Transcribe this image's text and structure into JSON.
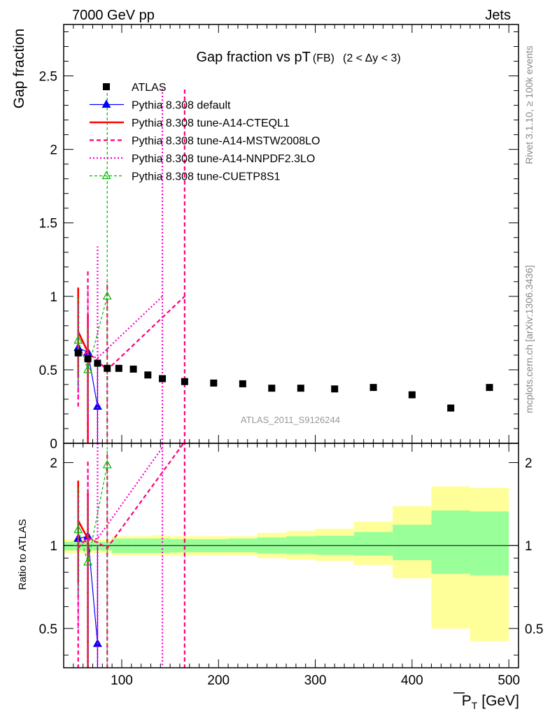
{
  "header": {
    "energy": "7000 GeV pp",
    "process": "Jets",
    "watermark": "ATLAS_2011_S9126244"
  },
  "side_labels": {
    "rivet": "Rivet 3.1.10, ≥ 100k events",
    "mcplots": "mcplots.cern.ch [arXiv:1306.3436]"
  },
  "colors": {
    "atlas": "#000000",
    "default": "#0000ff",
    "cteql1": "#ff0000",
    "mstw": "#ff0080",
    "nnpdf": "#ff00cc",
    "cuetp": "#00bb00",
    "band_inner": "#99ff99",
    "band_outer": "#ffff99"
  },
  "chart_data": [
    {
      "type": "scatter",
      "title": "Gap fraction vs pT",
      "title_sub": "(FB)",
      "title_cond": "(2 < Δy < 3)",
      "ylabel": "Gap fraction",
      "xlim": [
        40,
        510
      ],
      "ylim": [
        0,
        2.85
      ],
      "yticks": [
        0,
        0.5,
        1,
        1.5,
        2,
        2.5
      ],
      "ytick_labels": [
        "0",
        "0.5",
        "1",
        "1.5",
        "2",
        "2.5"
      ],
      "legend_position": "top-left",
      "series": [
        {
          "key": "atlas",
          "name": "ATLAS",
          "style": "points",
          "x": [
            55,
            65,
            75,
            85,
            97,
            112,
            127,
            142,
            165,
            195,
            225,
            255,
            285,
            320,
            360,
            400,
            440,
            480
          ],
          "y": [
            0.615,
            0.575,
            0.545,
            0.51,
            0.51,
            0.505,
            0.465,
            0.44,
            0.42,
            0.41,
            0.405,
            0.375,
            0.375,
            0.37,
            0.38,
            0.33,
            0.24,
            0.38
          ]
        },
        {
          "key": "default",
          "name": "Pythia 8.308 default",
          "style": "solid-triangle",
          "x": [
            55,
            65,
            75
          ],
          "y": [
            0.65,
            0.62,
            0.25
          ],
          "err": [
            [
              0.35,
              0.95
            ],
            [
              0.4,
              0.85
            ],
            [
              0.0,
              0.55
            ]
          ]
        },
        {
          "key": "cteql1",
          "name": "Pythia 8.308 tune-A14-CTEQL1",
          "style": "solid-thick",
          "x": [
            55,
            65
          ],
          "y": [
            0.76,
            0.62
          ],
          "err": [
            [
              0.45,
              1.06
            ],
            [
              0.0,
              0.88
            ]
          ]
        },
        {
          "key": "mstw",
          "name": "Pythia 8.308 tune-A14-MSTW2008LO",
          "style": "dashed",
          "x": [
            55,
            65,
            85,
            165
          ],
          "y": [
            0.6,
            0.62,
            0.5,
            1.0
          ],
          "err": [
            [
              0.25,
              0.95
            ],
            [
              0.0,
              1.17
            ],
            [
              0.0,
              1.1
            ],
            [
              0.0,
              2.42
            ]
          ]
        },
        {
          "key": "nnpdf",
          "name": "Pythia 8.308 tune-A14-NNPDF2.3LO",
          "style": "dotted",
          "x": [
            55,
            65,
            75,
            142
          ],
          "y": [
            0.63,
            0.6,
            0.58,
            1.0
          ],
          "err": [
            [
              0.3,
              0.97
            ],
            [
              0.15,
              1.05
            ],
            [
              0.0,
              1.34
            ],
            [
              0.0,
              2.42
            ]
          ]
        },
        {
          "key": "cuetp",
          "name": "Pythia 8.308 tune-CUETP8S1",
          "style": "dashed-open-triangle",
          "x": [
            55,
            65,
            85
          ],
          "y": [
            0.7,
            0.5,
            1.0
          ],
          "err": [
            [
              0.4,
              1.0
            ],
            [
              0.2,
              0.8
            ],
            [
              0.0,
              2.4
            ]
          ]
        }
      ]
    },
    {
      "type": "scatter",
      "xlabel": "P",
      "xlabel_sub": "T",
      "xlabel_unit": "[GeV]",
      "ylabel": "Ratio to ATLAS",
      "xlim": [
        40,
        510
      ],
      "ylim": [
        0.36,
        2.35
      ],
      "log_y": true,
      "xticks": [
        100,
        200,
        300,
        400,
        500
      ],
      "xtick_labels": [
        "100",
        "200",
        "300",
        "400",
        "500"
      ],
      "yticks": [
        0.5,
        1,
        2
      ],
      "ytick_labels": [
        "0.5",
        "1",
        "2"
      ],
      "bands": {
        "edges": [
          40,
          90,
          110,
          130,
          150,
          180,
          210,
          240,
          270,
          300,
          340,
          380,
          420,
          460,
          500
        ],
        "inner_lo": [
          0.96,
          0.94,
          0.94,
          0.94,
          0.945,
          0.945,
          0.945,
          0.935,
          0.93,
          0.925,
          0.92,
          0.885,
          0.79,
          0.78
        ],
        "inner_hi": [
          1.03,
          1.06,
          1.06,
          1.06,
          1.055,
          1.055,
          1.06,
          1.07,
          1.08,
          1.085,
          1.12,
          1.19,
          1.34,
          1.33
        ],
        "outer_lo": [
          0.94,
          0.92,
          0.92,
          0.92,
          0.92,
          0.92,
          0.92,
          0.9,
          0.89,
          0.88,
          0.85,
          0.76,
          0.5,
          0.45
        ],
        "outer_hi": [
          1.05,
          1.08,
          1.08,
          1.09,
          1.08,
          1.08,
          1.08,
          1.11,
          1.13,
          1.15,
          1.22,
          1.39,
          1.64,
          1.62
        ]
      },
      "series": [
        {
          "key": "default",
          "x": [
            55,
            65,
            75
          ],
          "y": [
            1.06,
            1.08,
            0.44
          ],
          "err": [
            [
              0.66,
              1.6
            ],
            [
              0.7,
              1.5
            ],
            [
              0.3,
              1.0
            ]
          ]
        },
        {
          "key": "cteql1",
          "x": [
            55,
            65
          ],
          "y": [
            1.23,
            1.06
          ],
          "err": [
            [
              0.73,
              1.72
            ],
            [
              0.3,
              1.55
            ]
          ]
        },
        {
          "key": "mstw",
          "x": [
            55,
            65,
            85,
            165
          ],
          "y": [
            0.98,
            1.07,
            0.98,
            2.38
          ],
          "err": [
            [
              0.3,
              1.55
            ],
            [
              0.3,
              2.05
            ],
            [
              0.3,
              2.2
            ],
            [
              0.3,
              2.5
            ]
          ]
        },
        {
          "key": "nnpdf",
          "x": [
            55,
            65,
            75,
            142
          ],
          "y": [
            1.02,
            1.04,
            1.06,
            2.27
          ],
          "err": [
            [
              0.5,
              1.55
            ],
            [
              0.3,
              1.85
            ],
            [
              0.3,
              2.5
            ],
            [
              0.3,
              2.5
            ]
          ]
        },
        {
          "key": "cuetp",
          "x": [
            55,
            65,
            85
          ],
          "y": [
            1.14,
            0.87,
            1.96
          ],
          "err": [
            [
              0.67,
              1.62
            ],
            [
              0.3,
              1.45
            ],
            [
              0.3,
              2.5
            ]
          ]
        }
      ]
    }
  ]
}
